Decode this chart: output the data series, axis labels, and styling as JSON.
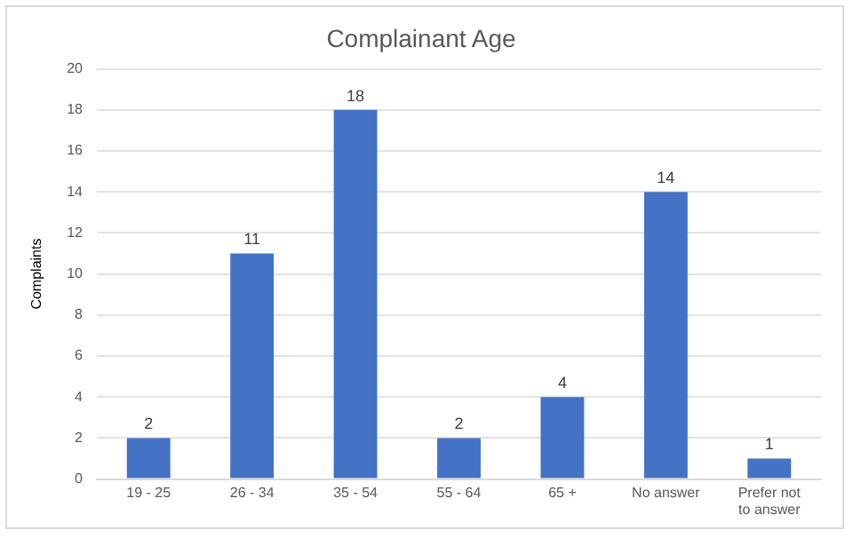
{
  "chart_data": {
    "type": "bar",
    "title": "Complainant Age",
    "ylabel": "Complaints",
    "categories": [
      "19 - 25",
      "26 - 34",
      "35 - 54",
      "55 - 64",
      "65 +",
      "No answer",
      "Prefer not to answer"
    ],
    "values": [
      2,
      11,
      18,
      2,
      4,
      14,
      1
    ],
    "color": "#4472c4",
    "ylim": [
      0,
      20
    ],
    "yticks": [
      0,
      2,
      4,
      6,
      8,
      10,
      12,
      14,
      16,
      18,
      20
    ],
    "grid": "y",
    "data_labels": true
  }
}
